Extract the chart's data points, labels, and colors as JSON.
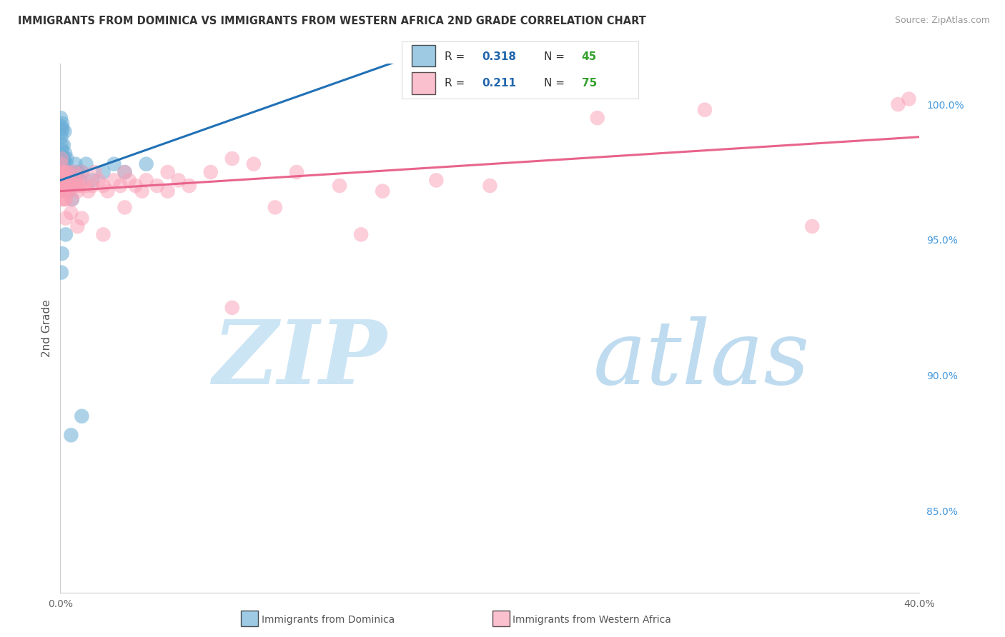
{
  "title": "IMMIGRANTS FROM DOMINICA VS IMMIGRANTS FROM WESTERN AFRICA 2ND GRADE CORRELATION CHART",
  "source": "Source: ZipAtlas.com",
  "ylabel": "2nd Grade",
  "xlim": [
    0.0,
    40.0
  ],
  "ylim": [
    82.0,
    101.5
  ],
  "dominica_R": 0.318,
  "dominica_N": 45,
  "western_africa_R": 0.211,
  "western_africa_N": 75,
  "dominica_color": "#6baed6",
  "western_africa_color": "#fa9fb5",
  "dominica_line_color": "#2171b5",
  "western_africa_line_color": "#e8648c",
  "legend_R_color": "#2166ac",
  "legend_N_color": "#33a02c",
  "watermark_zip_color": "#cce5f5",
  "watermark_atlas_color": "#b8d8ee",
  "background_color": "#ffffff",
  "dominica_x": [
    0.02,
    0.03,
    0.04,
    0.05,
    0.06,
    0.07,
    0.08,
    0.09,
    0.1,
    0.1,
    0.12,
    0.13,
    0.15,
    0.15,
    0.17,
    0.18,
    0.2,
    0.2,
    0.22,
    0.25,
    0.27,
    0.3,
    0.3,
    0.35,
    0.38,
    0.4,
    0.45,
    0.5,
    0.55,
    0.6,
    0.7,
    0.8,
    0.9,
    1.0,
    1.2,
    1.5,
    2.0,
    2.5,
    3.0,
    4.0,
    0.25,
    0.05,
    0.08,
    0.5,
    1.0
  ],
  "dominica_y": [
    99.5,
    99.2,
    98.8,
    98.5,
    99.0,
    98.3,
    97.8,
    99.3,
    99.1,
    97.5,
    98.0,
    97.2,
    97.8,
    98.5,
    97.5,
    98.0,
    97.2,
    99.0,
    98.2,
    97.5,
    97.8,
    97.5,
    98.0,
    97.2,
    97.0,
    96.8,
    97.5,
    97.0,
    96.5,
    97.2,
    97.8,
    97.5,
    97.2,
    97.5,
    97.8,
    97.2,
    97.5,
    97.8,
    97.5,
    97.8,
    95.2,
    93.8,
    94.5,
    87.8,
    88.5
  ],
  "western_africa_x": [
    0.02,
    0.03,
    0.04,
    0.05,
    0.06,
    0.07,
    0.08,
    0.09,
    0.1,
    0.12,
    0.13,
    0.15,
    0.17,
    0.18,
    0.2,
    0.22,
    0.25,
    0.27,
    0.3,
    0.32,
    0.35,
    0.38,
    0.4,
    0.45,
    0.5,
    0.55,
    0.6,
    0.65,
    0.7,
    0.75,
    0.8,
    0.9,
    1.0,
    1.1,
    1.2,
    1.3,
    1.5,
    1.6,
    1.8,
    2.0,
    2.2,
    2.5,
    2.8,
    3.0,
    3.2,
    3.5,
    3.8,
    4.0,
    4.5,
    5.0,
    5.5,
    6.0,
    7.0,
    8.0,
    9.0,
    11.0,
    13.0,
    15.0,
    17.5,
    20.0,
    25.0,
    30.0,
    35.0,
    39.0,
    39.5,
    0.25,
    10.0,
    14.0,
    0.5,
    0.8,
    1.0,
    2.0,
    3.0,
    5.0,
    8.0
  ],
  "western_africa_y": [
    97.5,
    97.2,
    97.8,
    98.0,
    97.5,
    97.2,
    97.0,
    96.8,
    96.5,
    96.8,
    97.0,
    97.5,
    96.5,
    97.2,
    97.0,
    96.8,
    96.5,
    97.0,
    97.5,
    97.2,
    97.0,
    96.8,
    97.5,
    97.2,
    97.0,
    96.5,
    97.0,
    97.5,
    97.2,
    97.0,
    96.8,
    97.0,
    97.5,
    97.2,
    97.0,
    96.8,
    97.0,
    97.5,
    97.2,
    97.0,
    96.8,
    97.2,
    97.0,
    97.5,
    97.2,
    97.0,
    96.8,
    97.2,
    97.0,
    97.5,
    97.2,
    97.0,
    97.5,
    98.0,
    97.8,
    97.5,
    97.0,
    96.8,
    97.2,
    97.0,
    99.5,
    99.8,
    95.5,
    100.0,
    100.2,
    95.8,
    96.2,
    95.2,
    96.0,
    95.5,
    95.8,
    95.2,
    96.2,
    96.8,
    92.5
  ],
  "dom_line_x0": 0.0,
  "dom_line_y0": 97.2,
  "dom_line_x1": 10.0,
  "dom_line_y1": 100.0,
  "wa_line_x0": 0.0,
  "wa_line_y0": 96.8,
  "wa_line_x1": 40.0,
  "wa_line_y1": 98.8
}
